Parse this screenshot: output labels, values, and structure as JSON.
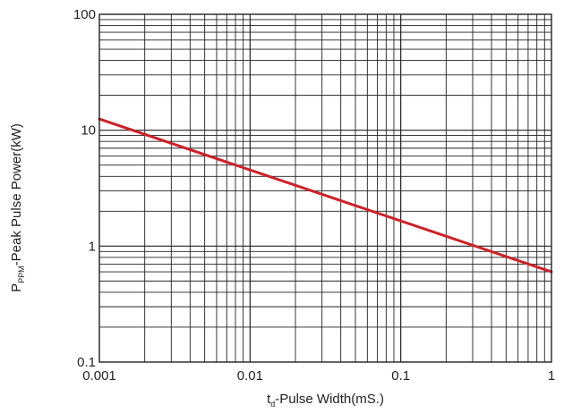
{
  "chart_data": {
    "type": "line",
    "xlabel": {
      "main": "t",
      "sub": "d",
      "rest": "-Pulse Width(mS.)"
    },
    "ylabel": {
      "main": "P",
      "sub": "PPM",
      "rest": "-Peak Pulse Power(kW)"
    },
    "x_scale": "log",
    "y_scale": "log",
    "xlim": [
      0.001,
      1
    ],
    "ylim": [
      0.1,
      100
    ],
    "x_ticks": [
      {
        "value": 0.001,
        "label": "0.001"
      },
      {
        "value": 0.01,
        "label": "0.01"
      },
      {
        "value": 0.1,
        "label": "0.1"
      },
      {
        "value": 1,
        "label": "1"
      }
    ],
    "y_ticks": [
      {
        "value": 0.1,
        "label": "0.1"
      },
      {
        "value": 1,
        "label": "1"
      },
      {
        "value": 10,
        "label": "10"
      },
      {
        "value": 100,
        "label": "100"
      }
    ],
    "grid": true,
    "series": [
      {
        "x": [
          0.001,
          1
        ],
        "y": [
          12.5,
          0.6
        ],
        "color": "#cc2229"
      }
    ],
    "colors": {
      "grid": "#222222",
      "line": "#cc2229",
      "text": "#222222"
    }
  }
}
